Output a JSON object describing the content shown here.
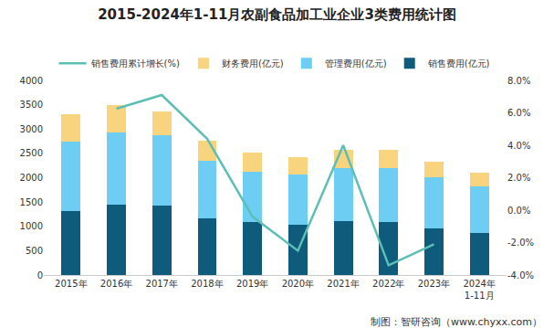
{
  "chart_data": {
    "type": "bar",
    "title": "2015-2024年1-11月农副食品加工业企业3类费用统计图",
    "stacked": true,
    "grid": false,
    "legend": "top",
    "categories": [
      "2015年",
      "2016年",
      "2017年",
      "2018年",
      "2019年",
      "2020年",
      "2021年",
      "2022年",
      "2023年",
      "2024年\n1-11月"
    ],
    "series": [
      {
        "name": "销售费用(亿元)",
        "type": "bar",
        "color": "#0e5b7b",
        "values": [
          1320,
          1440,
          1430,
          1160,
          1080,
          1040,
          1100,
          1080,
          960,
          870
        ]
      },
      {
        "name": "管理费用(亿元)",
        "type": "bar",
        "color": "#6dcdf3",
        "values": [
          1430,
          1490,
          1440,
          1180,
          1050,
          1030,
          1090,
          1110,
          1050,
          960
        ]
      },
      {
        "name": "财务费用(亿元)",
        "type": "bar",
        "color": "#f8d47e",
        "values": [
          550,
          560,
          500,
          420,
          380,
          350,
          390,
          380,
          310,
          270
        ]
      },
      {
        "name": "销售费用累计增长(%)",
        "type": "line",
        "axis": "y2",
        "color": "#5cbfb6",
        "values": [
          null,
          6.25,
          7.1,
          4.4,
          -0.4,
          -2.5,
          4.0,
          -3.4,
          -2.1,
          null
        ]
      }
    ],
    "ylim": [
      0,
      4000
    ],
    "yticks": [
      0,
      500,
      1000,
      1500,
      2000,
      2500,
      3000,
      3500,
      4000
    ],
    "y2lim": [
      -4,
      8
    ],
    "y2ticks": [
      {
        "value": -4,
        "label": "-4.0%"
      },
      {
        "value": -2,
        "label": "-2.0%"
      },
      {
        "value": 0,
        "label": "0.0%"
      },
      {
        "value": 2,
        "label": "2.0%"
      },
      {
        "value": 4,
        "label": "4.0%"
      },
      {
        "value": 6,
        "label": "6.0%"
      },
      {
        "value": 8,
        "label": "8.0%"
      }
    ],
    "source": "制图：智研咨询（www.chyxx.com）"
  }
}
